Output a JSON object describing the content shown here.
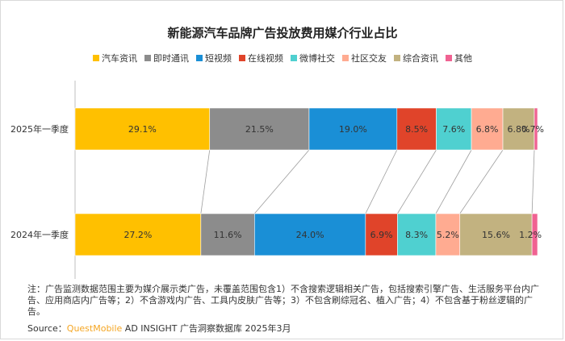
{
  "chart_data": {
    "type": "bar",
    "orientation": "horizontal",
    "stacked": true,
    "normalized": true,
    "title": "新能源汽车品牌广告投放费用媒介行业占比",
    "categories": [
      "2025年一季度",
      "2024年一季度"
    ],
    "series": [
      {
        "name": "汽车资讯",
        "color": "#ffc000",
        "values": [
          29.1,
          27.2
        ],
        "labels": [
          "29.1%",
          "27.2%"
        ]
      },
      {
        "name": "即时通讯",
        "color": "#8c8c8c",
        "values": [
          21.5,
          11.6
        ],
        "labels": [
          "21.5%",
          "11.6%"
        ]
      },
      {
        "name": "短视频",
        "color": "#1a8fd6",
        "values": [
          19.0,
          24.0
        ],
        "labels": [
          "19.0%",
          "24.0%"
        ]
      },
      {
        "name": "在线视频",
        "color": "#e0442a",
        "values": [
          8.5,
          6.9
        ],
        "labels": [
          "8.5%",
          "6.9%"
        ]
      },
      {
        "name": "微博社交",
        "color": "#4fd0d0",
        "values": [
          7.6,
          8.3
        ],
        "labels": [
          "7.6%",
          "8.3%"
        ]
      },
      {
        "name": "社区交友",
        "color": "#ffab91",
        "values": [
          6.8,
          5.2
        ],
        "labels": [
          "6.8%",
          "5.2%"
        ]
      },
      {
        "name": "综合资讯",
        "color": "#c2b280",
        "values": [
          6.8,
          15.6
        ],
        "labels": [
          "6.8%",
          "15.6%"
        ]
      },
      {
        "name": "其他",
        "color": "#f06292",
        "values": [
          0.7,
          1.2
        ],
        "labels": [
          "0.7%",
          "1.2%"
        ]
      }
    ],
    "xlim": [
      0,
      100
    ],
    "grid": false,
    "legend_position": "top"
  },
  "note": "注：广告监测数据范围主要为媒介展示类广告，未覆盖范围包含1）不含搜索逻辑相关广告，包括搜索引擎广告、生活服务平台内广告、应用商店内广告等；2）不含游戏内广告、工具内皮肤广告等；3）不包含刷综冠名、植入广告；4）不包含基于粉丝逻辑的广告。",
  "source": {
    "prefix": "Source：",
    "brand": "QuestMobile",
    "suffix": " AD INSIGHT 广告洞察数据库 2025年3月"
  }
}
